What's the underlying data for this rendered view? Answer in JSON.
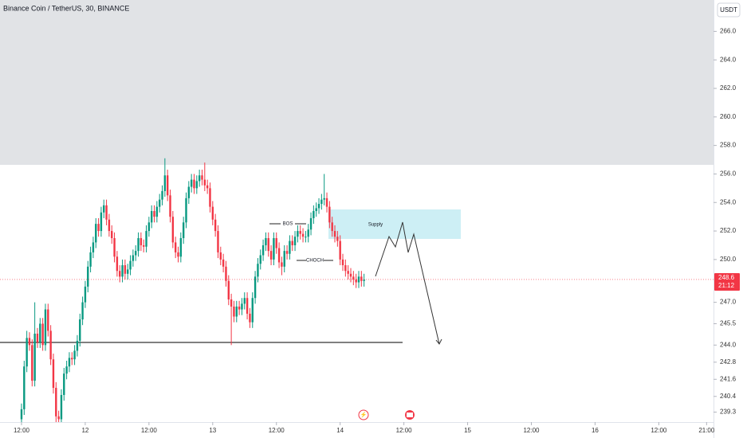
{
  "chart_data": {
    "type": "candlestick",
    "title": "Binance Coin / TetherUS, 30, BINANCE",
    "currency": "USDT",
    "countdown": "21:12",
    "annotations": {
      "bos": "BOS",
      "choch": "CHOCH",
      "supply": "Supply"
    },
    "up_color": "#089981",
    "down_color": "#f23645",
    "open": [
      238.8,
      239.5,
      242.5,
      244.5,
      244.0,
      241.5,
      244.8,
      244.2,
      245.5,
      244.0,
      246.5,
      245.0,
      243.0,
      241.0,
      239.0,
      238.8,
      240.5,
      242.0,
      242.5,
      243.1,
      243.0,
      243.6,
      244.3,
      245.8,
      247.0,
      248.1,
      249.5,
      250.5,
      251.2,
      252.5,
      252.0,
      253.3,
      253.8,
      252.8,
      252.0,
      251.5,
      250.2,
      249.2,
      248.8,
      249.6,
      249.0,
      249.3,
      249.9,
      250.3,
      250.6,
      251.5,
      251.0,
      250.9,
      252.0,
      252.6,
      253.4,
      253.0,
      253.7,
      254.2,
      254.8,
      255.9,
      254.5,
      253.0,
      251.2,
      250.5,
      250.2,
      251.5,
      252.6,
      254.3,
      255.1,
      255.6,
      255.0,
      255.5,
      255.9,
      255.6,
      255.2,
      255.0,
      253.7,
      252.8,
      252.0,
      250.5,
      250.0,
      249.5,
      248.5,
      247.2,
      246.7,
      246.0,
      246.7,
      246.5,
      246.9,
      247.3,
      246.2,
      245.6,
      247.3,
      248.8,
      249.7,
      250.3,
      251.0,
      251.5,
      250.6,
      250.0,
      251.5,
      250.8,
      249.8,
      249.5,
      250.6,
      250.4,
      251.3,
      251.0,
      251.6,
      252.0,
      251.8,
      251.6,
      251.6,
      252.1,
      252.9,
      253.4,
      253.6,
      253.9,
      254.2,
      254.3,
      253.7,
      252.6,
      252.0,
      251.6,
      251.3,
      250.0,
      249.6,
      249.2,
      249.0,
      248.8,
      248.6,
      248.4,
      248.8,
      248.5
    ],
    "high": [
      239.9,
      242.9,
      245.0,
      244.9,
      244.4,
      247.0,
      245.2,
      245.9,
      245.9,
      246.9,
      246.9,
      245.4,
      243.4,
      241.4,
      239.4,
      240.9,
      242.4,
      242.9,
      243.5,
      243.5,
      244.0,
      244.7,
      246.2,
      247.4,
      248.5,
      249.9,
      250.9,
      251.6,
      252.9,
      252.9,
      253.7,
      254.2,
      254.2,
      253.2,
      252.4,
      251.9,
      250.6,
      249.6,
      250.0,
      250.0,
      249.7,
      250.3,
      250.7,
      251.0,
      251.9,
      251.9,
      251.4,
      252.4,
      253.0,
      253.8,
      253.8,
      254.1,
      254.6,
      255.2,
      257.1,
      256.3,
      254.9,
      253.4,
      251.6,
      250.9,
      251.9,
      253.0,
      254.7,
      255.5,
      256.0,
      256.0,
      255.9,
      256.3,
      256.3,
      256.8,
      255.6,
      255.4,
      254.1,
      253.2,
      252.4,
      250.9,
      250.4,
      249.9,
      248.9,
      247.6,
      247.1,
      247.1,
      247.1,
      247.3,
      247.7,
      247.7,
      246.6,
      247.7,
      249.2,
      250.1,
      250.7,
      251.4,
      251.9,
      251.9,
      251.0,
      251.9,
      251.9,
      251.2,
      250.2,
      251.0,
      251.0,
      251.7,
      251.7,
      252.0,
      252.4,
      252.4,
      252.2,
      252.0,
      252.5,
      253.3,
      253.8,
      254.0,
      254.3,
      254.6,
      256.0,
      254.7,
      254.1,
      253.0,
      252.4,
      252.0,
      251.7,
      250.4,
      250.0,
      249.6,
      249.4,
      249.2,
      249.0,
      249.2,
      249.2,
      249.0
    ],
    "low": [
      238.4,
      239.1,
      242.1,
      243.6,
      241.1,
      241.1,
      243.8,
      243.8,
      243.6,
      243.6,
      244.6,
      242.6,
      240.6,
      238.6,
      238.6,
      238.6,
      240.1,
      241.6,
      242.1,
      242.6,
      242.6,
      243.2,
      243.9,
      245.4,
      246.6,
      247.7,
      249.1,
      250.1,
      250.8,
      251.6,
      251.6,
      252.9,
      252.4,
      251.6,
      251.1,
      249.8,
      248.8,
      248.4,
      248.4,
      248.6,
      248.6,
      248.9,
      249.5,
      249.9,
      250.2,
      250.6,
      250.5,
      250.5,
      251.6,
      252.2,
      252.6,
      252.6,
      253.3,
      253.8,
      254.4,
      254.1,
      252.6,
      250.8,
      250.1,
      249.8,
      249.8,
      251.1,
      252.2,
      253.9,
      254.7,
      254.6,
      254.6,
      255.1,
      255.2,
      254.8,
      254.6,
      253.3,
      252.4,
      251.6,
      250.1,
      249.6,
      249.1,
      248.1,
      246.8,
      244.0,
      245.6,
      245.6,
      246.1,
      246.1,
      246.5,
      245.8,
      245.2,
      245.2,
      246.9,
      248.4,
      249.3,
      249.9,
      250.6,
      250.2,
      249.6,
      249.6,
      250.4,
      249.4,
      248.9,
      249.1,
      250.0,
      250.0,
      250.6,
      250.6,
      251.2,
      251.4,
      251.2,
      251.2,
      251.2,
      251.7,
      252.5,
      253.0,
      253.2,
      253.5,
      253.8,
      253.3,
      252.2,
      251.6,
      251.2,
      250.9,
      249.6,
      249.2,
      248.8,
      248.6,
      248.4,
      248.2,
      248.0,
      248.0,
      248.1,
      248.1
    ],
    "close": [
      239.5,
      242.5,
      244.5,
      244.0,
      241.5,
      244.8,
      244.2,
      245.5,
      244.0,
      246.5,
      245.0,
      243.0,
      241.0,
      239.0,
      238.8,
      240.5,
      242.0,
      242.5,
      243.1,
      243.0,
      243.6,
      244.3,
      245.8,
      247.0,
      248.1,
      249.5,
      250.5,
      251.2,
      252.5,
      252.0,
      253.3,
      253.8,
      252.8,
      252.0,
      251.5,
      250.2,
      249.2,
      248.8,
      249.6,
      249.0,
      249.3,
      249.9,
      250.3,
      250.6,
      251.5,
      251.0,
      250.9,
      252.0,
      252.6,
      253.4,
      253.0,
      253.7,
      254.2,
      254.8,
      255.9,
      254.5,
      253.0,
      251.2,
      250.5,
      250.2,
      251.5,
      252.6,
      254.3,
      255.1,
      255.6,
      255.0,
      255.5,
      255.9,
      255.6,
      255.2,
      255.0,
      253.7,
      252.8,
      252.0,
      250.5,
      250.0,
      249.5,
      248.5,
      247.2,
      246.7,
      246.0,
      246.7,
      246.5,
      246.9,
      247.3,
      246.2,
      245.6,
      247.3,
      248.8,
      249.7,
      250.3,
      251.0,
      251.5,
      250.6,
      250.0,
      251.5,
      250.8,
      249.8,
      249.5,
      250.6,
      250.4,
      251.3,
      251.0,
      251.6,
      252.0,
      251.8,
      251.6,
      251.6,
      252.1,
      252.9,
      253.4,
      253.6,
      253.9,
      254.2,
      254.3,
      253.7,
      252.6,
      252.0,
      251.6,
      251.3,
      250.0,
      249.6,
      249.2,
      249.0,
      248.8,
      248.6,
      248.4,
      248.8,
      248.5,
      248.6
    ],
    "xlim": [
      -8.1,
      260.6
    ],
    "xticks": [
      {
        "value": 0,
        "label": "12:00"
      },
      {
        "value": 24,
        "label": "12"
      },
      {
        "value": 48,
        "label": "12:00"
      },
      {
        "value": 72,
        "label": "13"
      },
      {
        "value": 96,
        "label": "12:00"
      },
      {
        "value": 120,
        "label": "14"
      },
      {
        "value": 144,
        "label": "12:00"
      },
      {
        "value": 168,
        "label": "15"
      },
      {
        "value": 192,
        "label": "12:00"
      },
      {
        "value": 216,
        "label": "16"
      },
      {
        "value": 240,
        "label": "12:00"
      },
      {
        "value": 258,
        "label": "21:00"
      }
    ],
    "ylim": [
      238.6,
      268.2
    ],
    "yticks": [
      {
        "value": 266,
        "label": "266.0"
      },
      {
        "value": 264,
        "label": "264.0"
      },
      {
        "value": 262,
        "label": "262.0"
      },
      {
        "value": 260,
        "label": "260.0"
      },
      {
        "value": 258,
        "label": "258.0"
      },
      {
        "value": 256,
        "label": "256.0"
      },
      {
        "value": 254,
        "label": "254.0"
      },
      {
        "value": 252,
        "label": "252.0"
      },
      {
        "value": 250,
        "label": "250.0"
      },
      {
        "value": 247,
        "label": "247.0"
      },
      245.5,
      {
        "value": 244,
        "label": "244.0"
      },
      242.8,
      241.6,
      240.4,
      239.3
    ]
  }
}
